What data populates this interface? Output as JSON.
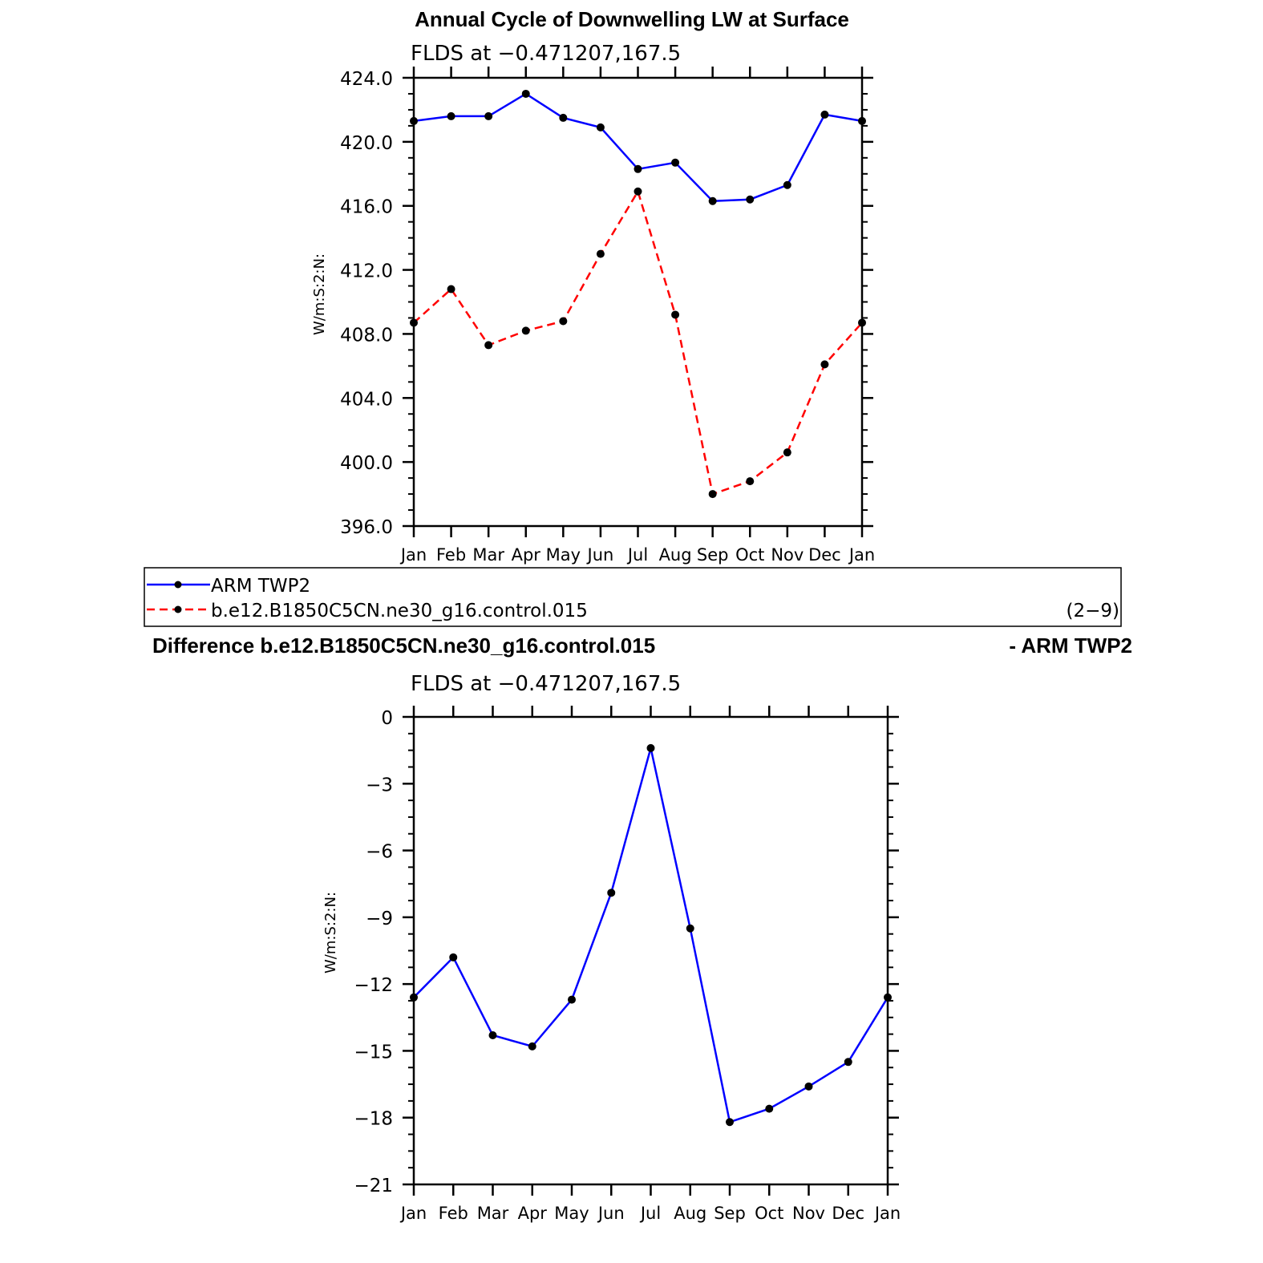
{
  "figure": {
    "title": "Annual Cycle of Downwelling LW at Surface",
    "difference_title_left": "Difference b.e12.B1850C5CN.ne30_g16.control.015",
    "difference_title_right": "- ARM TWP2",
    "legend_note": "(2−9)"
  },
  "legend": [
    {
      "name": "ARM TWP2",
      "color": "#0000ff",
      "dash": "solid"
    },
    {
      "name": "b.e12.B1850C5CN.ne30_g16.control.015",
      "color": "#ff0000",
      "dash": "dashed"
    }
  ],
  "chart_data": [
    {
      "type": "line",
      "subtitle": "FLDS at −0.471207,167.5",
      "ylabel": "W/m:S:2:N:",
      "categories": [
        "Jan",
        "Feb",
        "Mar",
        "Apr",
        "May",
        "Jun",
        "Jul",
        "Aug",
        "Sep",
        "Oct",
        "Nov",
        "Dec",
        "Jan"
      ],
      "ylim": [
        396,
        424
      ],
      "yticks": [
        396,
        400,
        404,
        408,
        412,
        416,
        420,
        424
      ],
      "ytick_labels": [
        "396.0",
        "400.0",
        "404.0",
        "408.0",
        "412.0",
        "416.0",
        "420.0",
        "424.0"
      ],
      "series": [
        {
          "name": "ARM TWP2",
          "color": "#0000ff",
          "dash": "solid",
          "values": [
            421.3,
            421.6,
            421.6,
            423.0,
            421.5,
            420.9,
            418.3,
            418.7,
            416.3,
            416.4,
            417.3,
            421.7,
            421.3
          ]
        },
        {
          "name": "b.e12.B1850C5CN.ne30_g16.control.015",
          "color": "#ff0000",
          "dash": "dashed",
          "values": [
            408.7,
            410.8,
            407.3,
            408.2,
            408.8,
            413.0,
            416.9,
            409.2,
            398.0,
            398.8,
            400.6,
            406.1,
            408.7
          ]
        }
      ]
    },
    {
      "type": "line",
      "subtitle": "FLDS at −0.471207,167.5",
      "ylabel": "W/m:S:2:N:",
      "categories": [
        "Jan",
        "Feb",
        "Mar",
        "Apr",
        "May",
        "Jun",
        "Jul",
        "Aug",
        "Sep",
        "Oct",
        "Nov",
        "Dec",
        "Jan"
      ],
      "ylim": [
        -21,
        0
      ],
      "yticks": [
        -21,
        -18,
        -15,
        -12,
        -9,
        -6,
        -3,
        0
      ],
      "ytick_labels": [
        "−21",
        "−18",
        "−15",
        "−12",
        "−9",
        "−6",
        "−3",
        "0"
      ],
      "series": [
        {
          "name": "",
          "color": "#0000ff",
          "dash": "solid",
          "values": [
            -12.6,
            -10.8,
            -14.3,
            -14.8,
            -12.7,
            -7.9,
            -1.4,
            -9.5,
            -18.2,
            -17.6,
            -16.6,
            -15.5,
            -12.6
          ]
        }
      ]
    }
  ]
}
